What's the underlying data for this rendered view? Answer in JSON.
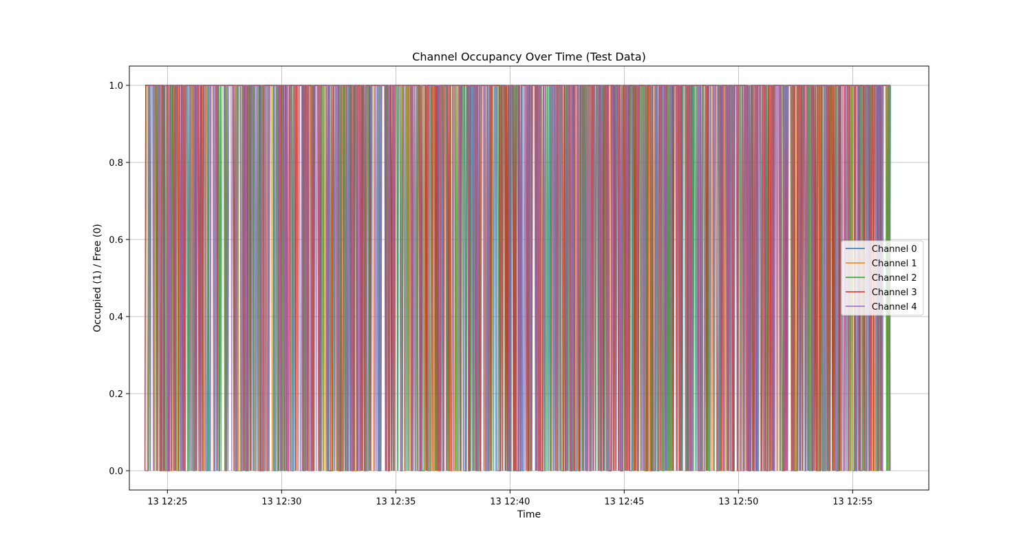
{
  "chart_data": {
    "type": "line",
    "title": "Channel Occupancy Over Time (Test Data)",
    "xlabel": "Time",
    "ylabel": "Occupied (1) / Free (0)",
    "x_range": [
      "13 12:24:01",
      "13 12:56:40"
    ],
    "xlim": [
      "13 12:23:20",
      "13 12:58:20"
    ],
    "ylim": [
      -0.05,
      1.05
    ],
    "x_ticks": [
      "13 12:25",
      "13 12:30",
      "13 12:35",
      "13 12:40",
      "13 12:45",
      "13 12:50",
      "13 12:55"
    ],
    "y_ticks": [
      "0.0",
      "0.2",
      "0.4",
      "0.6",
      "0.8",
      "1.0"
    ],
    "grid": true,
    "legend_position": "center-right",
    "x_sampling_seconds": 2,
    "series": [
      {
        "name": "Channel 0",
        "color": "#1f77b4",
        "values": "step signal: 0/1 per sample, ~75% occupied"
      },
      {
        "name": "Channel 1",
        "color": "#ff7f0e",
        "values": "step signal: 0/1 per sample, ~75% occupied"
      },
      {
        "name": "Channel 2",
        "color": "#2ca02c",
        "values": "step signal: 0/1 per sample, ~75% occupied"
      },
      {
        "name": "Channel 3",
        "color": "#d62728",
        "values": "step signal: 0/1 per sample, ~75% occupied"
      },
      {
        "name": "Channel 4",
        "color": "#9467bd",
        "values": "step signal: 0/1 per sample, ~75% occupied"
      }
    ]
  }
}
